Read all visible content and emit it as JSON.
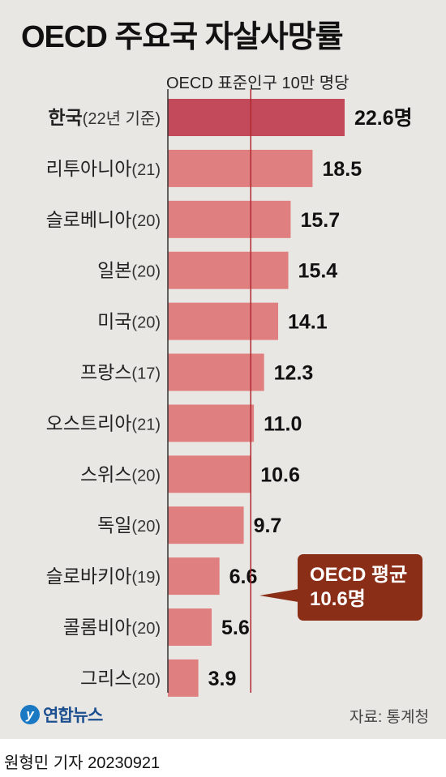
{
  "header": {
    "title": "OECD 주요국 자살사망률",
    "unit": "OECD 표준인구 10만 명당"
  },
  "colors": {
    "highlight_bar": "#c24a5a",
    "bar": "#e07f7f",
    "average_line": "#b0282f",
    "average_box": "#8a2e18",
    "background": "#e9e7e3"
  },
  "chart_data": {
    "type": "bar",
    "orientation": "horizontal",
    "categories": [
      {
        "name": "한국",
        "note": "(22년 기준)"
      },
      {
        "name": "리투아니아",
        "note": "(21)"
      },
      {
        "name": "슬로베니아",
        "note": "(20)"
      },
      {
        "name": "일본",
        "note": "(20)"
      },
      {
        "name": "미국",
        "note": "(20)"
      },
      {
        "name": "프랑스",
        "note": "(17)"
      },
      {
        "name": "오스트리아",
        "note": "(21)"
      },
      {
        "name": "스위스",
        "note": "(20)"
      },
      {
        "name": "독일",
        "note": "(20)"
      },
      {
        "name": "슬로바키아",
        "note": "(19)"
      },
      {
        "name": "콜롬비아",
        "note": "(20)"
      },
      {
        "name": "그리스",
        "note": "(20)"
      }
    ],
    "values": [
      22.6,
      18.5,
      15.7,
      15.4,
      14.1,
      12.3,
      11.0,
      10.6,
      9.7,
      6.6,
      5.6,
      3.9
    ],
    "value_labels": [
      "22.6명",
      "18.5",
      "15.7",
      "15.4",
      "14.1",
      "12.3",
      "11.0",
      "10.6",
      "9.7",
      "6.6",
      "5.6",
      "3.9"
    ],
    "highlight_index": 0,
    "reference_line": {
      "value": 10.6,
      "label_line1": "OECD 평균",
      "label_line2": "10.6명"
    }
  },
  "footer": {
    "logo_text": "연합뉴스",
    "source": "자료: 통계청",
    "byline": "원형민 기자  20230921"
  }
}
